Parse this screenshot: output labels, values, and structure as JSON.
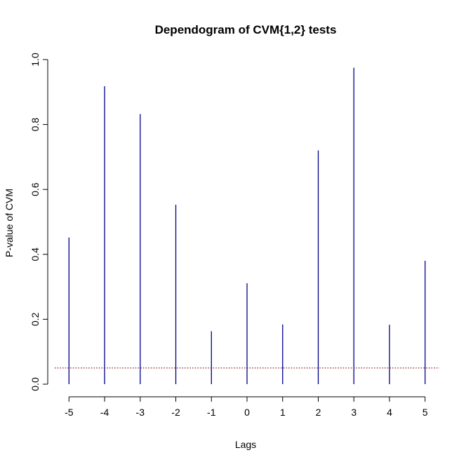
{
  "chart_data": {
    "type": "bar",
    "title": "Dependogram of CVM{1,2} tests",
    "xlabel": "Lags",
    "ylabel": "P-value of CVM",
    "categories": [
      "-5",
      "-4",
      "-3",
      "-2",
      "-1",
      "0",
      "1",
      "2",
      "3",
      "4",
      "5"
    ],
    "x": [
      -5,
      -4,
      -3,
      -2,
      -1,
      0,
      1,
      2,
      3,
      4,
      5
    ],
    "values": [
      0.452,
      0.918,
      0.832,
      0.553,
      0.163,
      0.311,
      0.184,
      0.72,
      0.975,
      0.183,
      0.38
    ],
    "xlim": [
      -5.4,
      5.4
    ],
    "ylim": [
      0,
      1
    ],
    "yticks": [
      0.0,
      0.2,
      0.4,
      0.6,
      0.8,
      1.0
    ],
    "ytick_labels": [
      "0.0",
      "0.2",
      "0.4",
      "0.6",
      "0.8",
      "1.0"
    ],
    "xticks": [
      -5,
      -4,
      -3,
      -2,
      -1,
      0,
      1,
      2,
      3,
      4,
      5
    ],
    "xtick_labels": [
      "-5",
      "-4",
      "-3",
      "-2",
      "-1",
      "0",
      "1",
      "2",
      "3",
      "4",
      "5"
    ],
    "reference_line": {
      "value": 0.05,
      "style": "dotted",
      "color": "#8b1a1a"
    },
    "bar_color": "#00008b",
    "grid": false
  }
}
